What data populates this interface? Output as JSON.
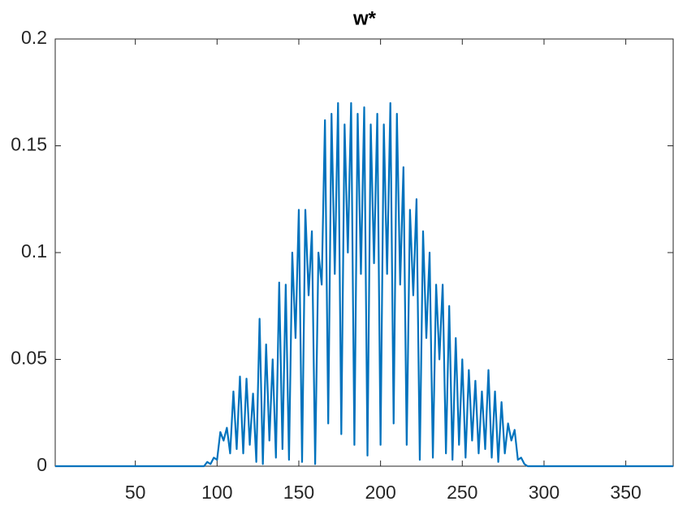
{
  "chart_data": {
    "type": "line",
    "title": "w*",
    "x": [
      1,
      92,
      94,
      96,
      98,
      100,
      102,
      104,
      106,
      108,
      110,
      112,
      114,
      116,
      118,
      120,
      122,
      124,
      126,
      128,
      130,
      132,
      134,
      136,
      138,
      140,
      142,
      144,
      146,
      148,
      150,
      152,
      154,
      156,
      158,
      160,
      162,
      164,
      166,
      168,
      170,
      172,
      174,
      176,
      178,
      180,
      182,
      184,
      186,
      188,
      190,
      192,
      194,
      196,
      198,
      200,
      202,
      204,
      206,
      208,
      210,
      212,
      214,
      216,
      218,
      220,
      222,
      224,
      226,
      228,
      230,
      232,
      234,
      236,
      238,
      240,
      242,
      244,
      246,
      248,
      250,
      252,
      254,
      256,
      258,
      260,
      262,
      264,
      266,
      268,
      270,
      272,
      274,
      276,
      278,
      280,
      282,
      284,
      286,
      288,
      290,
      379
    ],
    "series": [
      {
        "color": "#0072bd",
        "values": [
          0,
          0,
          0.002,
          0.001,
          0.004,
          0.003,
          0.016,
          0.012,
          0.018,
          0.006,
          0.035,
          0.008,
          0.042,
          0.006,
          0.041,
          0.01,
          0.034,
          0.002,
          0.069,
          0.001,
          0.057,
          0.012,
          0.05,
          0.004,
          0.086,
          0.008,
          0.085,
          0.003,
          0.1,
          0.06,
          0.12,
          0.002,
          0.12,
          0.08,
          0.11,
          0.001,
          0.1,
          0.085,
          0.162,
          0.02,
          0.165,
          0.09,
          0.17,
          0.015,
          0.16,
          0.1,
          0.17,
          0.01,
          0.165,
          0.09,
          0.168,
          0.005,
          0.16,
          0.095,
          0.165,
          0.01,
          0.16,
          0.09,
          0.17,
          0.02,
          0.165,
          0.085,
          0.14,
          0.01,
          0.12,
          0.08,
          0.125,
          0.003,
          0.11,
          0.06,
          0.1,
          0.004,
          0.085,
          0.05,
          0.085,
          0.006,
          0.075,
          0.003,
          0.06,
          0.01,
          0.05,
          0.004,
          0.045,
          0.012,
          0.04,
          0.006,
          0.035,
          0.008,
          0.045,
          0.004,
          0.035,
          0.002,
          0.03,
          0.006,
          0.02,
          0.012,
          0.017,
          0.003,
          0.004,
          0.001,
          0,
          0
        ]
      }
    ],
    "xlim": [
      1,
      379
    ],
    "xticks": [
      50,
      100,
      150,
      200,
      250,
      300,
      350
    ],
    "ylim": [
      0,
      0.2
    ],
    "yticks": [
      0,
      0.05,
      0.1,
      0.15,
      0.2
    ],
    "grid": false
  }
}
